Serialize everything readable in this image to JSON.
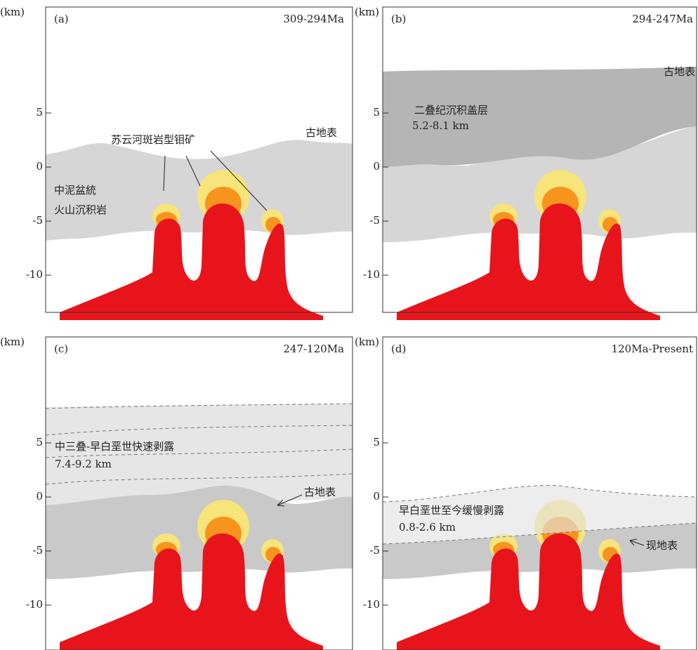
{
  "panels": [
    {
      "unit": "(km)",
      "label": "(a)",
      "age": "309-294Ma",
      "ticks": [
        "5",
        "0",
        "-5",
        "-10"
      ],
      "annotations": [
        "苏云河斑岩型钼矿",
        "古地表",
        "中泥盆統",
        "火山沉积岩"
      ]
    },
    {
      "unit": "(km)",
      "label": "(b)",
      "age": "294-247Ma",
      "ticks": [
        "5",
        "0",
        "-5",
        "-10"
      ],
      "annotations": [
        "古地表",
        "二叠纪沉积盖层",
        "5.2-8.1 km"
      ]
    },
    {
      "unit": "(km)",
      "label": "(c)",
      "age": "247-120Ma",
      "ticks": [
        "5",
        "0",
        "-5",
        "-10"
      ],
      "annotations": [
        "中三叠-早白垩世快速剥露",
        "7.4-9.2 km",
        "古地表"
      ]
    },
    {
      "unit": "(km)",
      "label": "(d)",
      "age": "120Ma-Present",
      "ticks": [
        "5",
        "0",
        "-5",
        "-10"
      ],
      "annotations": [
        "早白垩世至今缓慢剥露",
        "0.8-2.6 km",
        "现地表"
      ]
    }
  ]
}
